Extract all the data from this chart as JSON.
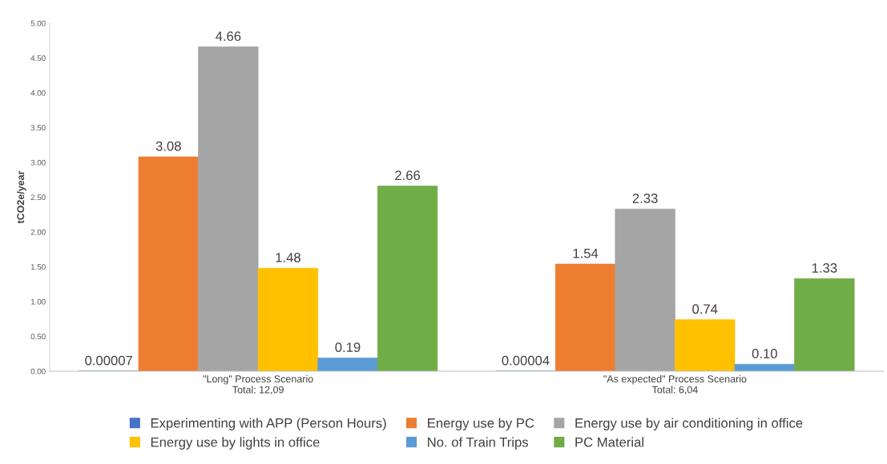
{
  "chart_data": {
    "type": "bar",
    "ylabel": "tCO2e/year",
    "categories": [
      "\"Long\" Process Scenario\nTotal: 12,09",
      "\"As expected\" Process Scenario\nTotal: 6,04"
    ],
    "series": [
      {
        "name": "Experimenting with APP (Person Hours)",
        "color": "#4472c4",
        "values": [
          7e-05,
          4e-05
        ],
        "value_labels": [
          "0.00007",
          "0.00004"
        ]
      },
      {
        "name": "Energy use by PC",
        "color": "#ed7d31",
        "values": [
          3.08,
          1.54
        ],
        "value_labels": [
          "3.08",
          "1.54"
        ]
      },
      {
        "name": "Energy use by air conditioning in office",
        "color": "#a5a5a5",
        "values": [
          4.66,
          2.33
        ],
        "value_labels": [
          "4.66",
          "2.33"
        ]
      },
      {
        "name": "Energy use by lights in office",
        "color": "#ffc000",
        "values": [
          1.48,
          0.74
        ],
        "value_labels": [
          "1.48",
          "0.74"
        ]
      },
      {
        "name": "No. of Train Trips",
        "color": "#5b9bd5",
        "values": [
          0.19,
          0.1
        ],
        "value_labels": [
          "0.19",
          "0.10"
        ]
      },
      {
        "name": "PC Material",
        "color": "#70ad47",
        "values": [
          2.66,
          1.33
        ],
        "value_labels": [
          "2.66",
          "1.33"
        ]
      }
    ],
    "ylim": [
      0,
      5
    ],
    "yticks": [
      {
        "value": 0,
        "label": "0.00"
      },
      {
        "value": 0.5,
        "label": "0.50"
      },
      {
        "value": 1,
        "label": "1.00"
      },
      {
        "value": 1.5,
        "label": "1.50"
      },
      {
        "value": 2,
        "label": "2.00"
      },
      {
        "value": 2.5,
        "label": "2.50"
      },
      {
        "value": 3,
        "label": "3.00"
      },
      {
        "value": 3.5,
        "label": "3.50"
      },
      {
        "value": 4,
        "label": "4.00"
      },
      {
        "value": 4.5,
        "label": "4.50"
      },
      {
        "value": 5,
        "label": "5.00"
      }
    ],
    "grid": false,
    "legend": "bottom"
  }
}
